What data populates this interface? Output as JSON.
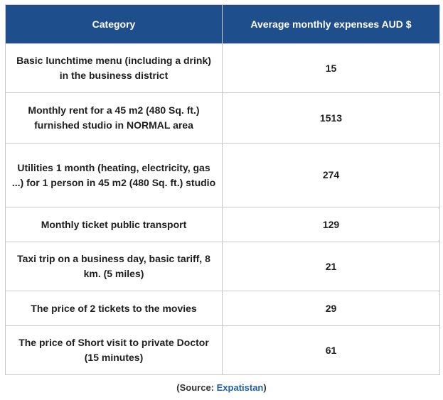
{
  "table": {
    "headers": [
      "Category",
      "Average monthly expenses AUD $"
    ],
    "rows": [
      {
        "category": "Basic lunchtime menu (including a drink) in the business district",
        "value": "15"
      },
      {
        "category": "Monthly rent for a 45 m2 (480 Sq. ft.) furnished studio in NORMAL area",
        "value": "1513"
      },
      {
        "category": "Utilities 1 month (heating, electricity, gas ...) for 1 person in 45 m2 (480 Sq. ft.) studio",
        "value": "274"
      },
      {
        "category": "Monthly ticket public transport",
        "value": "129"
      },
      {
        "category": "Taxi trip on a business day, basic tariff, 8 km. (5 miles)",
        "value": "21"
      },
      {
        "category": "The price of 2 tickets to the movies",
        "value": "29"
      },
      {
        "category": "The price of Short visit to private Doctor (15 minutes)",
        "value": "61"
      }
    ]
  },
  "source": {
    "prefix": "(Source: ",
    "link_text": "Expatistan",
    "suffix": ")"
  },
  "colors": {
    "header_background": "#1f4e8c",
    "header_text": "#ffffff",
    "source_link": "#1f5ea8"
  }
}
